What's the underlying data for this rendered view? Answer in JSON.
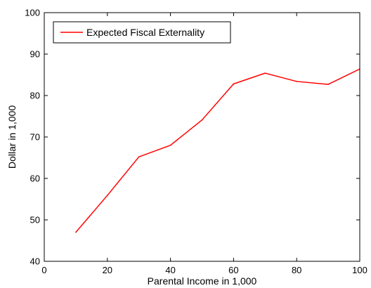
{
  "chart_data": {
    "type": "line",
    "title": "",
    "xlabel": "Parental Income in 1,000",
    "ylabel": "Dollar in 1,000",
    "xlim": [
      0,
      100
    ],
    "ylim": [
      40,
      100
    ],
    "xticks": [
      0,
      20,
      40,
      60,
      80,
      100
    ],
    "yticks": [
      40,
      50,
      60,
      70,
      80,
      90,
      100
    ],
    "grid": false,
    "legend_position": "top-left",
    "series": [
      {
        "name": "Expected Fiscal Externality",
        "color": "#ff0000",
        "x": [
          10,
          20,
          30,
          40,
          50,
          60,
          70,
          80,
          90,
          100
        ],
        "y": [
          47.0,
          55.9,
          65.2,
          68.0,
          74.1,
          82.8,
          85.4,
          83.4,
          82.7,
          86.4
        ]
      }
    ]
  }
}
